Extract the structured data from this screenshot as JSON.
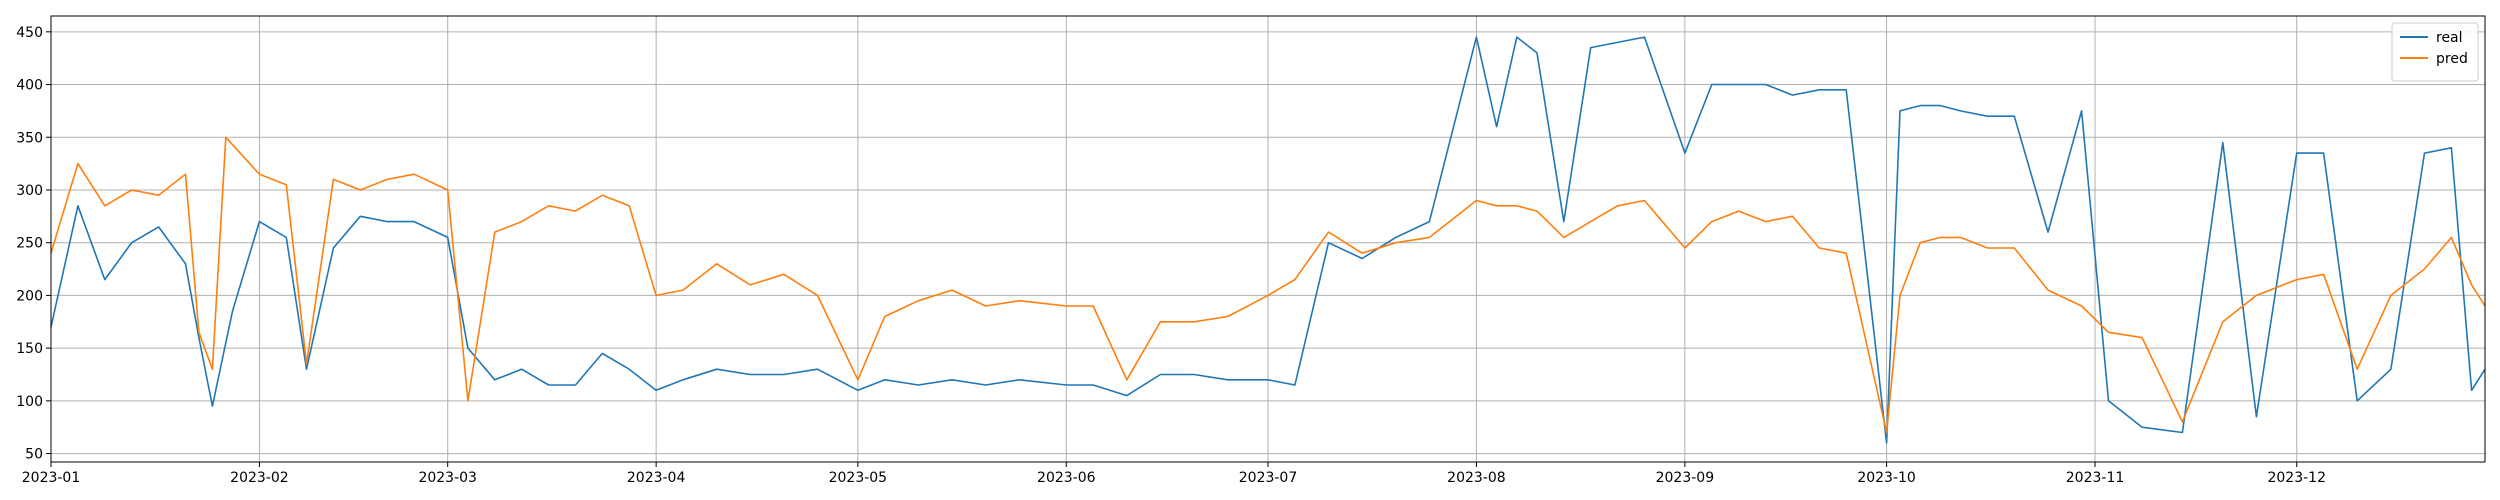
{
  "chart_data": {
    "type": "line",
    "x_axis": {
      "kind": "date",
      "range": [
        "2023-01-01",
        "2023-12-29"
      ],
      "ticks": [
        "2023-01",
        "2023-02",
        "2023-03",
        "2023-04",
        "2023-05",
        "2023-06",
        "2023-07",
        "2023-08",
        "2023-09",
        "2023-10",
        "2023-11",
        "2023-12"
      ],
      "tick_dates": [
        "2023-01-01",
        "2023-02-01",
        "2023-03-01",
        "2023-04-01",
        "2023-05-01",
        "2023-06-01",
        "2023-07-01",
        "2023-08-01",
        "2023-09-01",
        "2023-10-01",
        "2023-11-01",
        "2023-12-01"
      ]
    },
    "y_axis": {
      "ylim": [
        42,
        465
      ],
      "ticks": [
        50,
        100,
        150,
        200,
        250,
        300,
        350,
        400,
        450
      ]
    },
    "grid": true,
    "legend_position": "top-right",
    "series": [
      {
        "name": "real",
        "color": "#1f77b4",
        "points": [
          [
            "2023-01-01",
            170
          ],
          [
            "2023-01-05",
            285
          ],
          [
            "2023-01-09",
            215
          ],
          [
            "2023-01-13",
            250
          ],
          [
            "2023-01-17",
            265
          ],
          [
            "2023-01-21",
            230
          ],
          [
            "2023-01-23",
            160
          ],
          [
            "2023-01-25",
            95
          ],
          [
            "2023-01-28",
            185
          ],
          [
            "2023-02-01",
            270
          ],
          [
            "2023-02-05",
            255
          ],
          [
            "2023-02-08",
            130
          ],
          [
            "2023-02-12",
            245
          ],
          [
            "2023-02-16",
            275
          ],
          [
            "2023-02-20",
            270
          ],
          [
            "2023-02-24",
            270
          ],
          [
            "2023-03-01",
            255
          ],
          [
            "2023-03-04",
            150
          ],
          [
            "2023-03-08",
            120
          ],
          [
            "2023-03-12",
            130
          ],
          [
            "2023-03-16",
            115
          ],
          [
            "2023-03-20",
            115
          ],
          [
            "2023-03-24",
            145
          ],
          [
            "2023-03-28",
            130
          ],
          [
            "2023-04-01",
            110
          ],
          [
            "2023-04-05",
            120
          ],
          [
            "2023-04-10",
            130
          ],
          [
            "2023-04-15",
            125
          ],
          [
            "2023-04-20",
            125
          ],
          [
            "2023-04-25",
            130
          ],
          [
            "2023-05-01",
            110
          ],
          [
            "2023-05-05",
            120
          ],
          [
            "2023-05-10",
            115
          ],
          [
            "2023-05-15",
            120
          ],
          [
            "2023-05-20",
            115
          ],
          [
            "2023-05-25",
            120
          ],
          [
            "2023-06-01",
            115
          ],
          [
            "2023-06-05",
            115
          ],
          [
            "2023-06-10",
            105
          ],
          [
            "2023-06-15",
            125
          ],
          [
            "2023-06-20",
            125
          ],
          [
            "2023-06-25",
            120
          ],
          [
            "2023-07-01",
            120
          ],
          [
            "2023-07-05",
            115
          ],
          [
            "2023-07-10",
            250
          ],
          [
            "2023-07-15",
            235
          ],
          [
            "2023-07-20",
            255
          ],
          [
            "2023-07-25",
            270
          ],
          [
            "2023-08-01",
            445
          ],
          [
            "2023-08-04",
            360
          ],
          [
            "2023-08-07",
            445
          ],
          [
            "2023-08-10",
            430
          ],
          [
            "2023-08-14",
            270
          ],
          [
            "2023-08-18",
            435
          ],
          [
            "2023-08-22",
            440
          ],
          [
            "2023-08-26",
            445
          ],
          [
            "2023-09-01",
            335
          ],
          [
            "2023-09-05",
            400
          ],
          [
            "2023-09-09",
            400
          ],
          [
            "2023-09-13",
            400
          ],
          [
            "2023-09-17",
            390
          ],
          [
            "2023-09-21",
            395
          ],
          [
            "2023-09-25",
            395
          ],
          [
            "2023-10-01",
            60
          ],
          [
            "2023-10-03",
            375
          ],
          [
            "2023-10-06",
            380
          ],
          [
            "2023-10-09",
            380
          ],
          [
            "2023-10-12",
            375
          ],
          [
            "2023-10-16",
            370
          ],
          [
            "2023-10-20",
            370
          ],
          [
            "2023-10-25",
            260
          ],
          [
            "2023-10-30",
            375
          ],
          [
            "2023-11-03",
            100
          ],
          [
            "2023-11-08",
            75
          ],
          [
            "2023-11-14",
            70
          ],
          [
            "2023-11-20",
            345
          ],
          [
            "2023-11-25",
            85
          ],
          [
            "2023-12-01",
            335
          ],
          [
            "2023-12-05",
            335
          ],
          [
            "2023-12-10",
            100
          ],
          [
            "2023-12-15",
            130
          ],
          [
            "2023-12-20",
            335
          ],
          [
            "2023-12-24",
            340
          ],
          [
            "2023-12-27",
            110
          ],
          [
            "2023-12-29",
            130
          ]
        ]
      },
      {
        "name": "pred",
        "color": "#ff7f0e",
        "points": [
          [
            "2023-01-01",
            240
          ],
          [
            "2023-01-05",
            325
          ],
          [
            "2023-01-09",
            285
          ],
          [
            "2023-01-13",
            300
          ],
          [
            "2023-01-17",
            295
          ],
          [
            "2023-01-21",
            315
          ],
          [
            "2023-01-23",
            165
          ],
          [
            "2023-01-25",
            130
          ],
          [
            "2023-01-27",
            350
          ],
          [
            "2023-02-01",
            315
          ],
          [
            "2023-02-05",
            305
          ],
          [
            "2023-02-08",
            135
          ],
          [
            "2023-02-12",
            310
          ],
          [
            "2023-02-16",
            300
          ],
          [
            "2023-02-20",
            310
          ],
          [
            "2023-02-24",
            315
          ],
          [
            "2023-03-01",
            300
          ],
          [
            "2023-03-04",
            100
          ],
          [
            "2023-03-08",
            260
          ],
          [
            "2023-03-12",
            270
          ],
          [
            "2023-03-16",
            285
          ],
          [
            "2023-03-20",
            280
          ],
          [
            "2023-03-24",
            295
          ],
          [
            "2023-03-28",
            285
          ],
          [
            "2023-04-01",
            200
          ],
          [
            "2023-04-05",
            205
          ],
          [
            "2023-04-10",
            230
          ],
          [
            "2023-04-15",
            210
          ],
          [
            "2023-04-20",
            220
          ],
          [
            "2023-04-25",
            200
          ],
          [
            "2023-05-01",
            120
          ],
          [
            "2023-05-05",
            180
          ],
          [
            "2023-05-10",
            195
          ],
          [
            "2023-05-15",
            205
          ],
          [
            "2023-05-20",
            190
          ],
          [
            "2023-05-25",
            195
          ],
          [
            "2023-06-01",
            190
          ],
          [
            "2023-06-05",
            190
          ],
          [
            "2023-06-10",
            120
          ],
          [
            "2023-06-15",
            175
          ],
          [
            "2023-06-20",
            175
          ],
          [
            "2023-06-25",
            180
          ],
          [
            "2023-07-01",
            200
          ],
          [
            "2023-07-05",
            215
          ],
          [
            "2023-07-10",
            260
          ],
          [
            "2023-07-15",
            240
          ],
          [
            "2023-07-20",
            250
          ],
          [
            "2023-07-25",
            255
          ],
          [
            "2023-08-01",
            290
          ],
          [
            "2023-08-04",
            285
          ],
          [
            "2023-08-07",
            285
          ],
          [
            "2023-08-10",
            280
          ],
          [
            "2023-08-14",
            255
          ],
          [
            "2023-08-18",
            270
          ],
          [
            "2023-08-22",
            285
          ],
          [
            "2023-08-26",
            290
          ],
          [
            "2023-09-01",
            245
          ],
          [
            "2023-09-05",
            270
          ],
          [
            "2023-09-09",
            280
          ],
          [
            "2023-09-13",
            270
          ],
          [
            "2023-09-17",
            275
          ],
          [
            "2023-09-21",
            245
          ],
          [
            "2023-09-25",
            240
          ],
          [
            "2023-10-01",
            70
          ],
          [
            "2023-10-03",
            200
          ],
          [
            "2023-10-06",
            250
          ],
          [
            "2023-10-09",
            255
          ],
          [
            "2023-10-12",
            255
          ],
          [
            "2023-10-16",
            245
          ],
          [
            "2023-10-20",
            245
          ],
          [
            "2023-10-25",
            205
          ],
          [
            "2023-10-30",
            190
          ],
          [
            "2023-11-03",
            165
          ],
          [
            "2023-11-08",
            160
          ],
          [
            "2023-11-14",
            80
          ],
          [
            "2023-11-20",
            175
          ],
          [
            "2023-11-25",
            200
          ],
          [
            "2023-12-01",
            215
          ],
          [
            "2023-12-05",
            220
          ],
          [
            "2023-12-10",
            130
          ],
          [
            "2023-12-15",
            200
          ],
          [
            "2023-12-20",
            225
          ],
          [
            "2023-12-24",
            255
          ],
          [
            "2023-12-27",
            210
          ],
          [
            "2023-12-29",
            190
          ]
        ]
      }
    ]
  }
}
